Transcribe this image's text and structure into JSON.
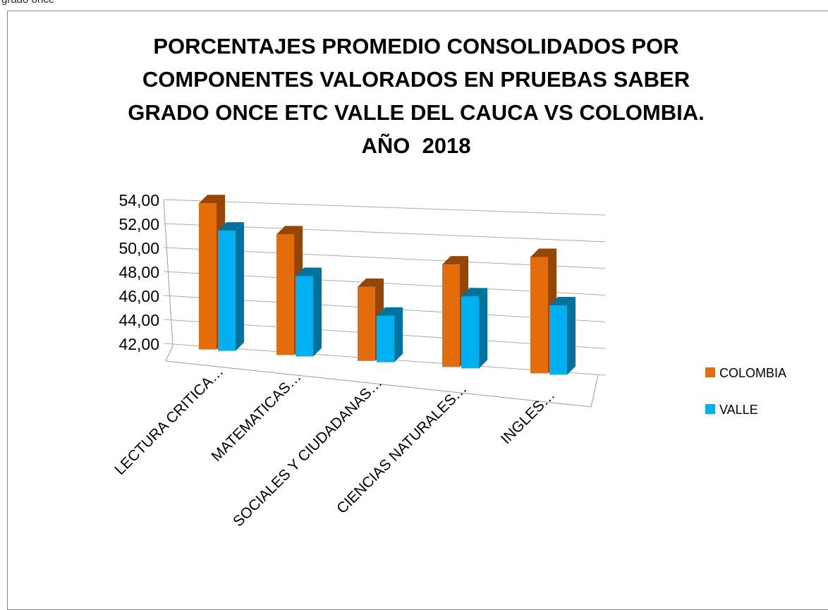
{
  "caption": "grado once",
  "chart_data": {
    "type": "bar3d",
    "title": "PORCENTAJES PROMEDIO CONSOLIDADOS POR\nCOMPONENTES VALORADOS EN PRUEBAS SABER\nGRADO ONCE ETC VALLE DEL CAUCA VS COLOMBIA.\nAÑO  2018",
    "categories": [
      "LECTURA CRITICA…",
      "MATEMATICAS…",
      "SOCIALES Y CIUDADANAS…",
      "CIENCIAS NATURALES…",
      "INGLES…"
    ],
    "series": [
      {
        "name": "COLOMBIA",
        "color": "#e46c0a",
        "values": [
          53.8,
          51.5,
          47.6,
          49.7,
          50.6
        ]
      },
      {
        "name": "VALLE",
        "color": "#00b0f0",
        "values": [
          51.6,
          48.2,
          45.4,
          47.3,
          47.0
        ]
      }
    ],
    "ylim": [
      42,
      54
    ],
    "yticks": [
      {
        "value": 42,
        "label": "42,00"
      },
      {
        "value": 44,
        "label": "44,00"
      },
      {
        "value": 46,
        "label": "46,00"
      },
      {
        "value": 48,
        "label": "48,00"
      },
      {
        "value": 50,
        "label": "50,00"
      },
      {
        "value": 52,
        "label": "52,00"
      },
      {
        "value": 54,
        "label": "54,00"
      }
    ],
    "grid": true,
    "legend": "right"
  }
}
